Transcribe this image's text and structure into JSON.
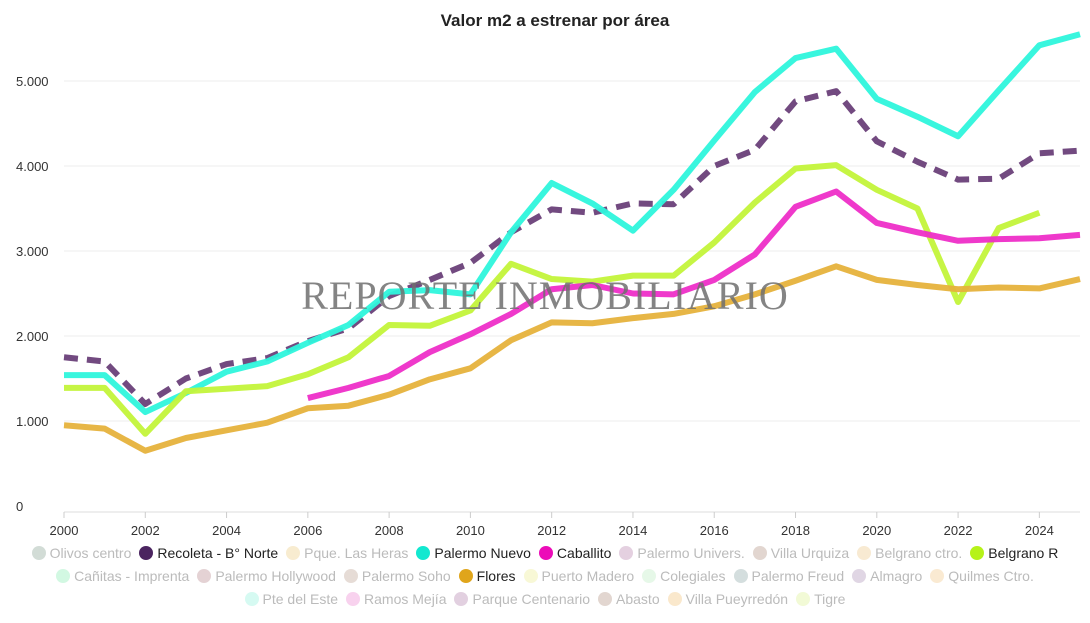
{
  "chart_data": {
    "type": "line",
    "title": "Valor m2 a estrenar por área",
    "xlabel": "",
    "ylabel": "",
    "xlim": [
      2000,
      2025
    ],
    "ylim": [
      0,
      5500
    ],
    "x_ticks": [
      2000,
      2002,
      2004,
      2006,
      2008,
      2010,
      2012,
      2014,
      2016,
      2018,
      2020,
      2022,
      2024
    ],
    "y_ticks": [
      {
        "v": 0,
        "label": "0"
      },
      {
        "v": 1000,
        "label": "1.000"
      },
      {
        "v": 2000,
        "label": "2.000"
      },
      {
        "v": 3000,
        "label": "3.000"
      },
      {
        "v": 4000,
        "label": "4.000"
      },
      {
        "v": 5000,
        "label": "5.000"
      }
    ],
    "grid": true,
    "watermark": "REPORTE INMOBILIARIO",
    "legend_position": "bottom",
    "series": [
      {
        "name": "Recoleta - B° Norte",
        "color": "#6a4079",
        "dashed": true,
        "x": [
          2000,
          2001,
          2002,
          2003,
          2004,
          2005,
          2006,
          2007,
          2008,
          2009,
          2010,
          2011,
          2012,
          2013,
          2014,
          2015,
          2016,
          2017,
          2018,
          2019,
          2020,
          2021,
          2022,
          2023,
          2024,
          2025
        ],
        "values": [
          1750,
          1700,
          1200,
          1500,
          1670,
          1740,
          1940,
          2090,
          2470,
          2660,
          2860,
          3220,
          3490,
          3450,
          3560,
          3550,
          4000,
          4190,
          4760,
          4880,
          4290,
          4050,
          3840,
          3850,
          4150,
          4180
        ]
      },
      {
        "name": "Palermo Nuevo",
        "color": "#2ef5dc",
        "x": [
          2000,
          2001,
          2002,
          2003,
          2004,
          2005,
          2006,
          2007,
          2008,
          2009,
          2010,
          2011,
          2012,
          2013,
          2014,
          2015,
          2016,
          2017,
          2018,
          2019,
          2020,
          2021,
          2022,
          2023,
          2024,
          2025
        ],
        "values": [
          1540,
          1540,
          1105,
          1330,
          1580,
          1700,
          1920,
          2130,
          2520,
          2540,
          2490,
          3220,
          3800,
          3560,
          3240,
          3720,
          4300,
          4870,
          5270,
          5380,
          4790,
          4580,
          4350,
          4890,
          5420,
          5550
        ]
      },
      {
        "name": "Belgrano R",
        "color": "#c3f43a",
        "x": [
          2000,
          2001,
          2002,
          2003,
          2004,
          2005,
          2006,
          2007,
          2008,
          2009,
          2010,
          2011,
          2012,
          2013,
          2014,
          2015,
          2016,
          2017,
          2018,
          2019,
          2020,
          2021,
          2022,
          2023,
          2024
        ],
        "values": [
          1390,
          1390,
          850,
          1350,
          1380,
          1410,
          1550,
          1750,
          2130,
          2120,
          2300,
          2850,
          2670,
          2640,
          2710,
          2710,
          3100,
          3570,
          3970,
          4010,
          3720,
          3500,
          2400,
          3270,
          3450
        ]
      },
      {
        "name": "Caballito",
        "color": "#ee2ec8",
        "x": [
          2006,
          2007,
          2008,
          2009,
          2010,
          2011,
          2012,
          2013,
          2014,
          2015,
          2016,
          2017,
          2018,
          2019,
          2020,
          2021,
          2022,
          2023,
          2024,
          2025
        ],
        "values": [
          1270,
          1390,
          1530,
          1810,
          2020,
          2260,
          2550,
          2600,
          2500,
          2490,
          2660,
          2960,
          3520,
          3700,
          3330,
          3220,
          3120,
          3140,
          3150,
          3190
        ]
      },
      {
        "name": "Flores",
        "color": "#e6b23c",
        "x": [
          2000,
          2001,
          2002,
          2003,
          2004,
          2005,
          2006,
          2007,
          2008,
          2009,
          2010,
          2011,
          2012,
          2013,
          2014,
          2015,
          2016,
          2017,
          2018,
          2019,
          2020,
          2021,
          2022,
          2023,
          2024,
          2025
        ],
        "values": [
          950,
          910,
          650,
          800,
          890,
          980,
          1150,
          1180,
          1310,
          1490,
          1620,
          1950,
          2160,
          2150,
          2210,
          2260,
          2350,
          2490,
          2650,
          2820,
          2660,
          2600,
          2550,
          2570,
          2560,
          2670
        ]
      }
    ],
    "legend": [
      {
        "label": "Olivos centro",
        "color": "#d2dcd6",
        "active": false
      },
      {
        "label": "Recoleta - B° Norte",
        "color": "#4b2460",
        "active": true
      },
      {
        "label": "Pque. Las Heras",
        "color": "#f8ecd0",
        "active": false
      },
      {
        "label": "Palermo Nuevo",
        "color": "#12e8d0",
        "active": true
      },
      {
        "label": "Caballito",
        "color": "#ec0cb8",
        "active": true
      },
      {
        "label": "Palermo Univers.",
        "color": "#e4d0e0",
        "active": false
      },
      {
        "label": "Villa Urquiza",
        "color": "#e2d6d0",
        "active": false
      },
      {
        "label": "Belgrano ctro.",
        "color": "#f8ead2",
        "active": false
      },
      {
        "label": "Belgrano R",
        "color": "#b6f21a",
        "active": true
      },
      {
        "label": "Cañitas - Imprenta",
        "color": "#d2f8e2",
        "active": false
      },
      {
        "label": "Palermo Hollywood",
        "color": "#e4d2d4",
        "active": false
      },
      {
        "label": "Palermo Soho",
        "color": "#e6dcd6",
        "active": false
      },
      {
        "label": "Flores",
        "color": "#e0a51b",
        "active": true
      },
      {
        "label": "Puerto Madero",
        "color": "#f8f8d6",
        "active": false
      },
      {
        "label": "Colegiales",
        "color": "#e6f8e8",
        "active": false
      },
      {
        "label": "Palermo Freud",
        "color": "#d4dede",
        "active": false
      },
      {
        "label": "Almagro",
        "color": "#e0d6e4",
        "active": false
      },
      {
        "label": "Quilmes Ctro.",
        "color": "#faead2",
        "active": false
      },
      {
        "label": "Pte del Este",
        "color": "#d6faf2",
        "active": false
      },
      {
        "label": "Ramos Mejía",
        "color": "#f8d2ee",
        "active": false
      },
      {
        "label": "Parque Centenario",
        "color": "#e2d0e0",
        "active": false
      },
      {
        "label": "Abasto",
        "color": "#e2d6d0",
        "active": false
      },
      {
        "label": "Villa Pueyrredón",
        "color": "#fae8cc",
        "active": false
      },
      {
        "label": "Tigre",
        "color": "#f2fad6",
        "active": false
      }
    ]
  }
}
